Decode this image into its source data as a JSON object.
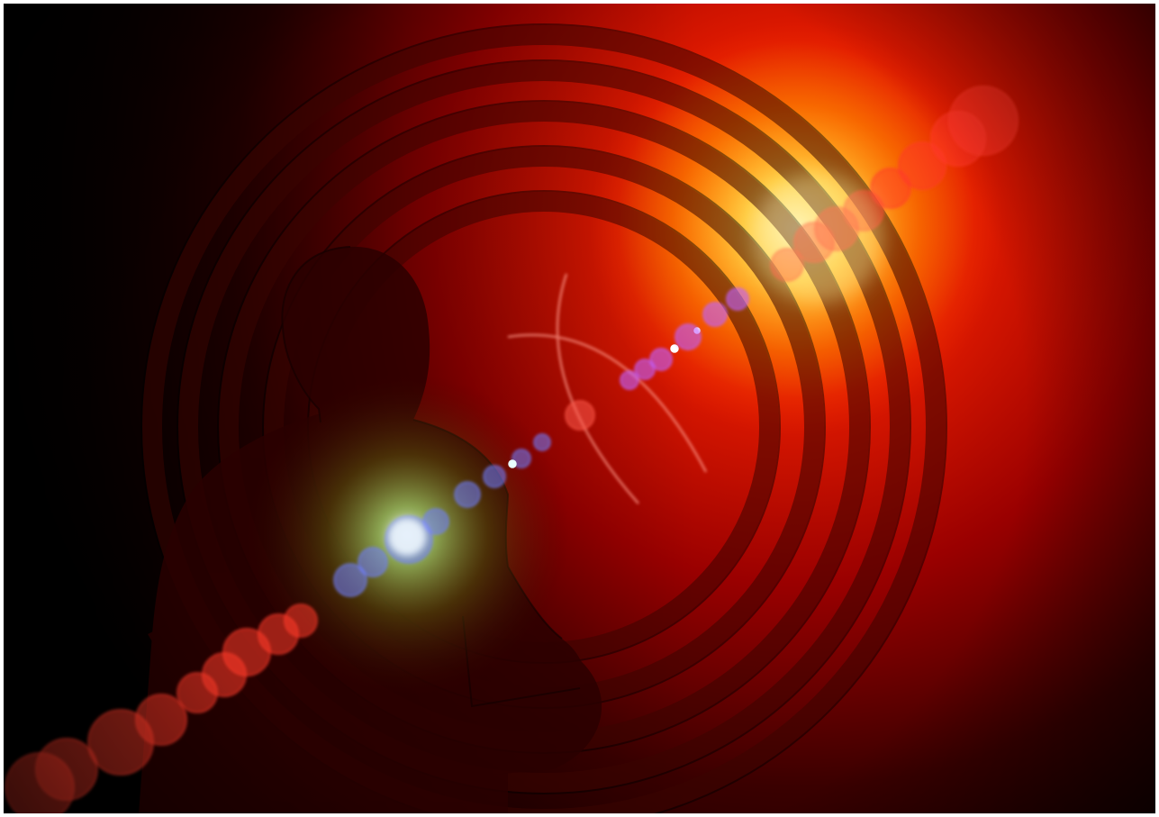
{
  "image": {
    "subject": "abstract-musician-silhouette-with-light-flare",
    "palette": {
      "background_dark": "#000000",
      "deep_red": "#7a0000",
      "red": "#c40000",
      "bright_red": "#ff2a00",
      "orange": "#ff8a00",
      "yellow": "#ffe07a",
      "flare_blue": "#6f7dff",
      "flare_violet": "#c060ff",
      "flare_green": "#b6e06a",
      "bokeh_red": "#ff3a2a"
    }
  }
}
